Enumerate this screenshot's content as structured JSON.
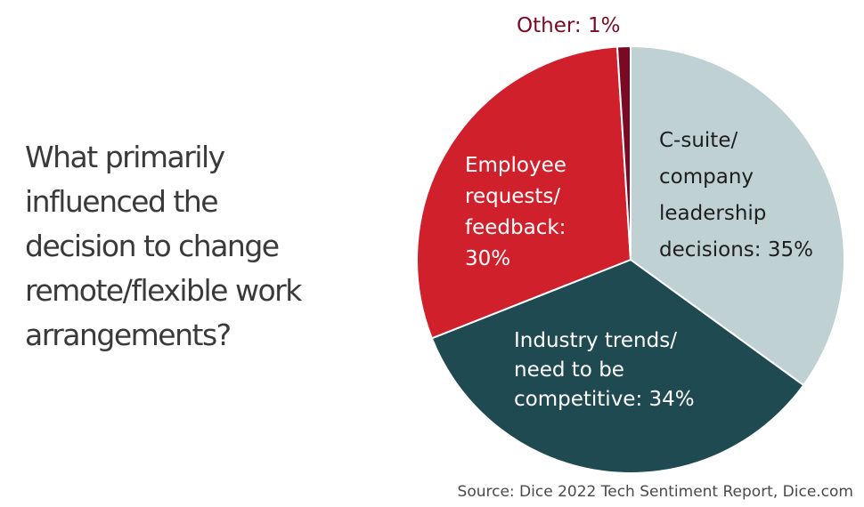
{
  "chart_data": {
    "type": "pie",
    "title": "What primarily\ninfluenced the\ndecision to change\nremote/flexible work\narrangements?",
    "slices": [
      {
        "label": "C-suite/ company leadership decisions: 35%",
        "label_lines": [
          "C-suite/",
          "company",
          "leadership",
          "decisions: 35%"
        ],
        "value": 35,
        "color": "#bfd1d3",
        "label_color": "#1e1e1e"
      },
      {
        "label": "Industry trends/ need to be competitive: 34%",
        "label_lines": [
          "Industry trends/",
          "need to be",
          "competitive: 34%"
        ],
        "value": 34,
        "color": "#1f4a52",
        "label_color": "#ffffff"
      },
      {
        "label": "Employee requests/ feedback: 30%",
        "label_lines": [
          "Employee",
          "requests/",
          "feedback:",
          "30%"
        ],
        "value": 30,
        "color": "#d0202c",
        "label_color": "#ffffff"
      },
      {
        "label": "Other: 1%",
        "label_lines": [
          "Other: 1%"
        ],
        "value": 1,
        "color": "#7a0a24",
        "label_color": "#7a0a24"
      }
    ],
    "start_angle": "top, clockwise",
    "source": "Source: Dice 2022 Tech Sentiment Report, Dice.com"
  }
}
